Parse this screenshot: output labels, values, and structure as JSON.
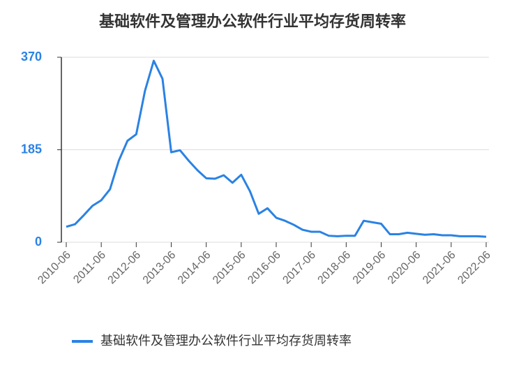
{
  "chart_data": {
    "type": "line",
    "title": "基础软件及管理办公软件行业平均存货周转率",
    "categories": [
      "2010-06",
      null,
      null,
      null,
      "2011-06",
      null,
      null,
      null,
      "2012-06",
      null,
      null,
      null,
      "2013-06",
      null,
      null,
      null,
      "2014-06",
      null,
      null,
      null,
      "2015-06",
      null,
      null,
      null,
      "2016-06",
      null,
      null,
      null,
      "2017-06",
      null,
      null,
      null,
      "2018-06",
      null,
      null,
      null,
      "2019-06",
      null,
      null,
      null,
      "2020-06",
      null,
      null,
      null,
      "2021-06",
      null,
      null,
      null,
      "2022-06"
    ],
    "series": [
      {
        "name": "基础软件及管理办公软件行业平均存货周转率",
        "color": "#2a82e4",
        "values": [
          31,
          36,
          54,
          73,
          84,
          106,
          163,
          203,
          216,
          303,
          363,
          327,
          180,
          184,
          163,
          144,
          128,
          127,
          134,
          119,
          135,
          102,
          57,
          68,
          49,
          43,
          35,
          25,
          21,
          21,
          13,
          12,
          13,
          13,
          43,
          40,
          37,
          16,
          16,
          19,
          17,
          15,
          16,
          14,
          14,
          12,
          12,
          12,
          11
        ]
      }
    ],
    "ylim": [
      0,
      370
    ],
    "yticks": [
      0,
      185,
      370
    ],
    "grid": true
  }
}
